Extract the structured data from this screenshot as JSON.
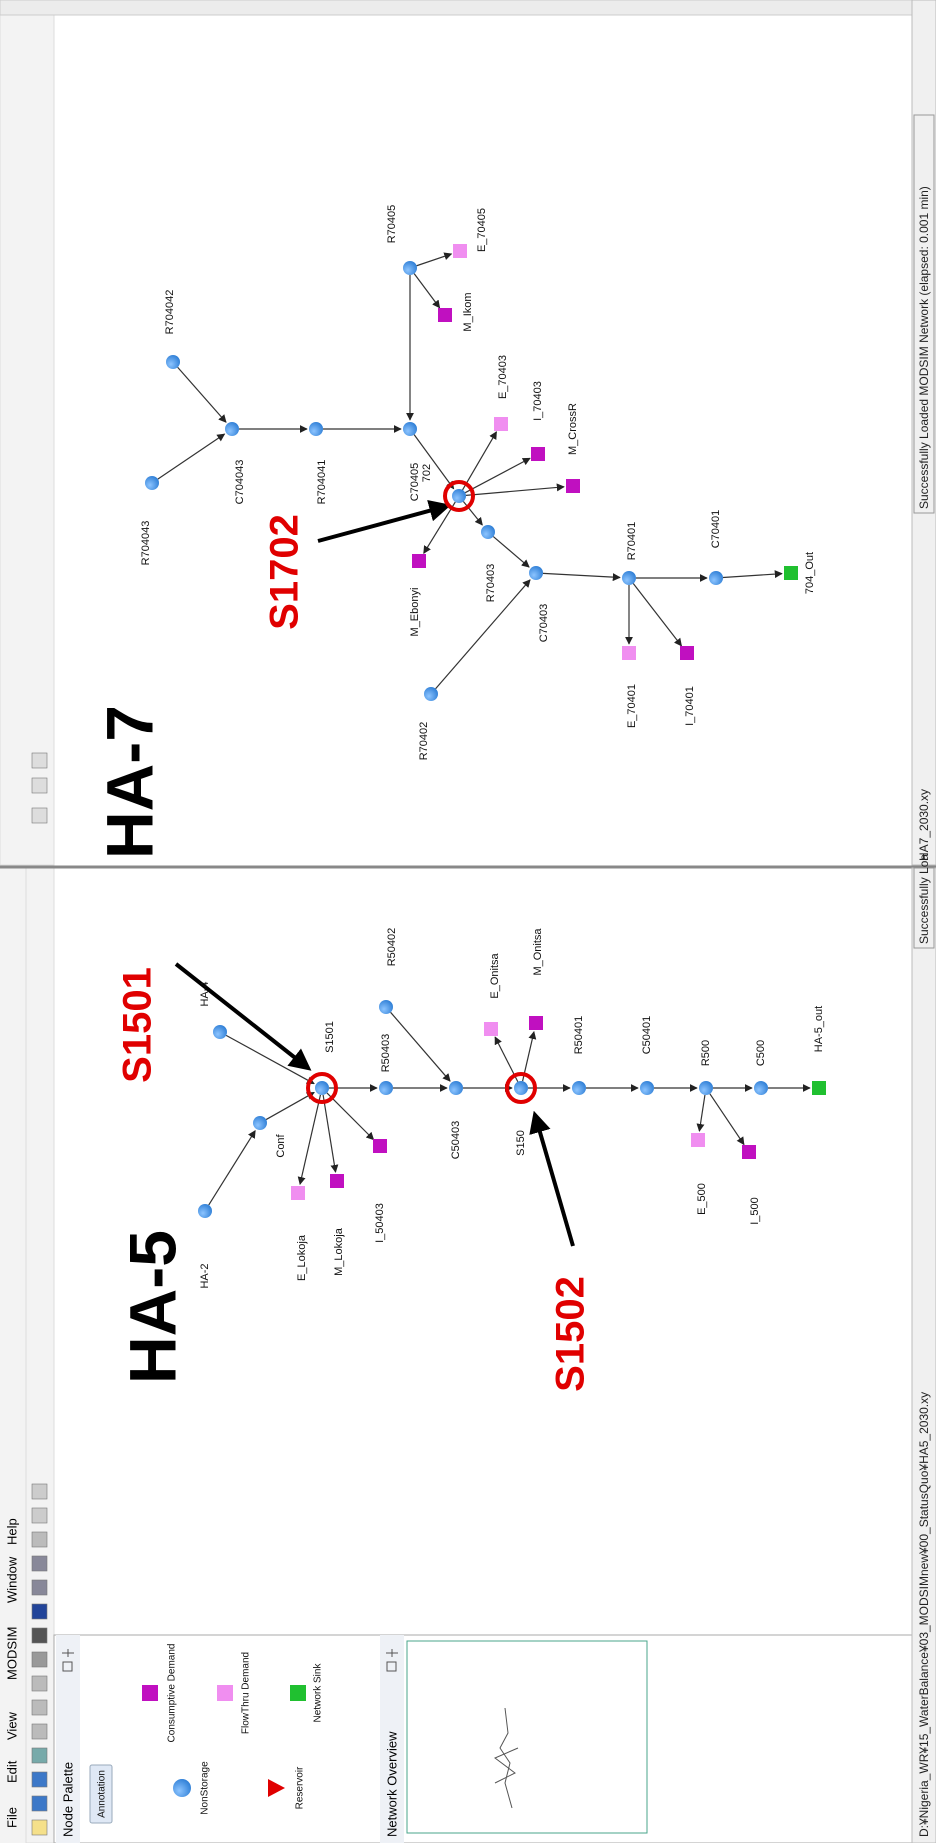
{
  "menu": [
    "File",
    "Edit",
    "View",
    "MODSIM",
    "Window",
    "Help"
  ],
  "palette": {
    "title": "Node Palette",
    "tab": "Annotation",
    "items": [
      "Consumptive Demand",
      "NonStorage",
      "FlowThru Demand",
      "Reservoir",
      "Network Sink"
    ]
  },
  "overview": {
    "title": "Network Overview"
  },
  "windows": [
    {
      "title": "HA-5",
      "callouts": [
        "S1501",
        "S1502"
      ],
      "nodes": [
        "HA-2",
        "HA-4",
        "Conf",
        "S1501",
        "E_Lokoja",
        "M_Lokoja",
        "I_50403",
        "R50403",
        "R50402",
        "C50403",
        "S150",
        "E_Onitsa",
        "M_Onitsa",
        "R50401",
        "C50401",
        "R500",
        "E_500",
        "I_500",
        "C500",
        "HA-5_out"
      ],
      "status_file": "D:¥Nigeria_WR¥15_WaterBalance¥03_MODSIMnew¥00_StatusQuo¥HA5_2030.xy",
      "status": "Successfully Loa"
    },
    {
      "title": "HA-7",
      "callouts": [
        "S1702"
      ],
      "nodes": [
        "R704043",
        "R704042",
        "C704043",
        "R704041",
        "C70405",
        "R70405",
        "M_Ikom",
        "E_70405",
        "702",
        "E_70403",
        "I_70403",
        "M_CrossR",
        "M_Ebonyi",
        "R70403",
        "C70403",
        "R70402",
        "R70401",
        "E_70401",
        "I_70401",
        "C70401",
        "704_Out"
      ],
      "status_file": "HA7_2030.xy",
      "status": "Successfully Loaded MODSIM Network (elapsed: 0.001 min)"
    }
  ]
}
